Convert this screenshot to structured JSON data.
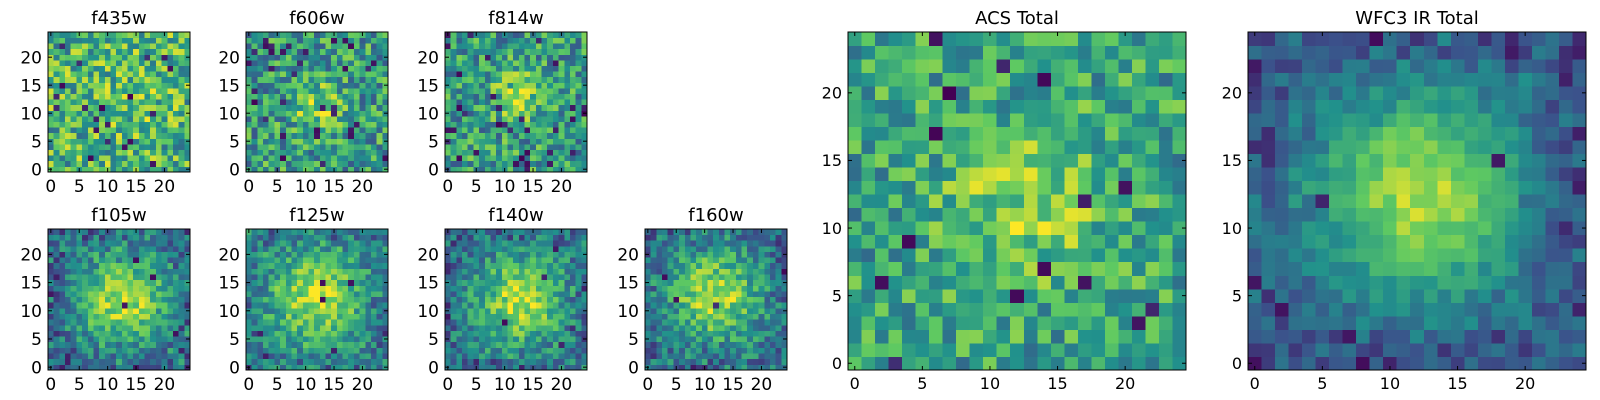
{
  "figure": {
    "background": "#ffffff"
  },
  "colormap": [
    "#440154",
    "#3b528b",
    "#21918c",
    "#5ec962",
    "#fde725"
  ],
  "chart_data": [
    {
      "type": "heatmap",
      "title": "f435w",
      "grid_size": 25,
      "xticks": [
        0,
        5,
        10,
        15,
        20
      ],
      "yticks": [
        0,
        5,
        10,
        15,
        20
      ],
      "seed": 11,
      "signal": 0.05,
      "blob_width": 6,
      "noise": 0.38,
      "background": 0.65,
      "corner_dark": 0,
      "holes": 0.035
    },
    {
      "type": "heatmap",
      "title": "f606w",
      "grid_size": 25,
      "xticks": [
        0,
        5,
        10,
        15,
        20
      ],
      "yticks": [
        0,
        5,
        10,
        15,
        20
      ],
      "seed": 23,
      "signal": 0.25,
      "blob_width": 3,
      "noise": 0.35,
      "background": 0.55,
      "corner_dark": 0,
      "holes": 0.035
    },
    {
      "type": "heatmap",
      "title": "f814w",
      "grid_size": 25,
      "xticks": [
        0,
        5,
        10,
        15,
        20
      ],
      "yticks": [
        0,
        5,
        10,
        15,
        20
      ],
      "seed": 37,
      "signal": 0.3,
      "blob_width": 3,
      "noise": 0.35,
      "background": 0.55,
      "corner_dark": 0,
      "holes": 0.035
    },
    {
      "type": "heatmap",
      "title": "f105w",
      "grid_size": 25,
      "xticks": [
        0,
        5,
        10,
        15,
        20
      ],
      "yticks": [
        0,
        5,
        10,
        15,
        20
      ],
      "seed": 41,
      "signal": 0.45,
      "blob_width": 5,
      "noise": 0.25,
      "background": 0.45,
      "corner_dark": 0.25,
      "holes": 0.01
    },
    {
      "type": "heatmap",
      "title": "f125w",
      "grid_size": 25,
      "xticks": [
        0,
        5,
        10,
        15,
        20
      ],
      "yticks": [
        0,
        5,
        10,
        15,
        20
      ],
      "seed": 53,
      "signal": 0.4,
      "blob_width": 5,
      "noise": 0.25,
      "background": 0.5,
      "corner_dark": 0.2,
      "holes": 0.01
    },
    {
      "type": "heatmap",
      "title": "f140w",
      "grid_size": 25,
      "xticks": [
        0,
        5,
        10,
        15,
        20
      ],
      "yticks": [
        0,
        5,
        10,
        15,
        20
      ],
      "seed": 67,
      "signal": 0.45,
      "blob_width": 5,
      "noise": 0.25,
      "background": 0.45,
      "corner_dark": 0.2,
      "holes": 0.01
    },
    {
      "type": "heatmap",
      "title": "f160w",
      "grid_size": 25,
      "xticks": [
        0,
        5,
        10,
        15,
        20
      ],
      "yticks": [
        0,
        5,
        10,
        15,
        20
      ],
      "seed": 79,
      "signal": 0.45,
      "blob_width": 5,
      "noise": 0.25,
      "background": 0.45,
      "corner_dark": 0.2,
      "holes": 0.01
    },
    {
      "type": "heatmap",
      "title": "ACS Total",
      "grid_size": 25,
      "xticks": [
        0,
        5,
        10,
        15,
        20
      ],
      "yticks": [
        0,
        5,
        10,
        15,
        20
      ],
      "seed": 97,
      "signal": 0.25,
      "blob_width": 4,
      "noise": 0.3,
      "background": 0.58,
      "corner_dark": 0,
      "holes": 0.025
    },
    {
      "type": "heatmap",
      "title": "WFC3 IR Total",
      "grid_size": 25,
      "xticks": [
        0,
        5,
        10,
        15,
        20
      ],
      "yticks": [
        0,
        5,
        10,
        15,
        20
      ],
      "seed": 103,
      "signal": 0.5,
      "blob_width": 5,
      "noise": 0.12,
      "background": 0.38,
      "corner_dark": 0.3,
      "holes": 0.015
    }
  ]
}
